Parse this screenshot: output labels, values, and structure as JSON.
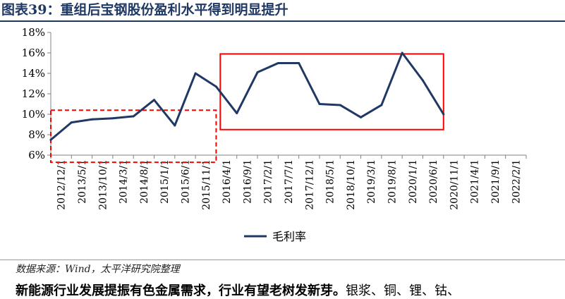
{
  "figure": {
    "title": "图表39：重组后宝钢股份盈利水平得到明显提升",
    "source": "数据来源：Wind，太平洋研究院整理",
    "body_bold": "新能源行业发展提振有色金属需求，行业有望老树发新芽。",
    "body_rest": "银浆、铜、锂、钴、"
  },
  "chart_data": {
    "type": "line",
    "title": "",
    "xlabel": "",
    "ylabel": "",
    "ylim": [
      6,
      18
    ],
    "yticks": [
      "6%",
      "8%",
      "10%",
      "12%",
      "14%",
      "16%",
      "18%"
    ],
    "ytick_values": [
      6,
      8,
      10,
      12,
      14,
      16,
      18
    ],
    "x_tick_labels": [
      "2012/12/1",
      "2013/5/1",
      "2013/10/1",
      "2014/3/1",
      "2014/8/1",
      "2015/1/1",
      "2015/6/1",
      "2015/11/1",
      "2016/4/1",
      "2016/9/1",
      "2017/2/1",
      "2017/7/1",
      "2017/12/1",
      "2018/5/1",
      "2018/10/1",
      "2019/3/1",
      "2019/8/1",
      "2020/1/1",
      "2020/6/1",
      "2020/11/1",
      "2021/4/1",
      "2021/9/1",
      "2022/2/1"
    ],
    "x_range": [
      "2012/12",
      "2022/7"
    ],
    "legend": {
      "position": "bottom"
    },
    "grid": false,
    "series": [
      {
        "name": "毛利率",
        "color": "#1F3864",
        "points": [
          {
            "x": "2012/12",
            "y": 7.5
          },
          {
            "x": "2013/5",
            "y": 9.2
          },
          {
            "x": "2013/10",
            "y": 9.5
          },
          {
            "x": "2014/3",
            "y": 9.6
          },
          {
            "x": "2014/8",
            "y": 9.8
          },
          {
            "x": "2015/1",
            "y": 11.4
          },
          {
            "x": "2015/6",
            "y": 8.9
          },
          {
            "x": "2015/11",
            "y": 14.0
          },
          {
            "x": "2016/4",
            "y": 12.7
          },
          {
            "x": "2016/9",
            "y": 10.1
          },
          {
            "x": "2017/2",
            "y": 14.1
          },
          {
            "x": "2017/7",
            "y": 15.0
          },
          {
            "x": "2017/12",
            "y": 15.0
          },
          {
            "x": "2018/5",
            "y": 11.0
          },
          {
            "x": "2018/10",
            "y": 10.9
          },
          {
            "x": "2019/3",
            "y": 9.7
          },
          {
            "x": "2019/8",
            "y": 10.9
          },
          {
            "x": "2020/1",
            "y": 16.0
          },
          {
            "x": "2020/6",
            "y": 13.3
          },
          {
            "x": "2020/11",
            "y": 10.0
          }
        ]
      }
    ],
    "highlight_boxes": [
      {
        "style": "dashed",
        "color": "#FF0000",
        "x_from": "2012/12",
        "x_to": "2016/4",
        "y_from": 5.3,
        "y_to": 10.4
      },
      {
        "style": "solid",
        "color": "#FF0000",
        "x_from": "2016/5",
        "x_to": "2020/11",
        "y_from": 8.5,
        "y_to": 15.9
      }
    ]
  }
}
